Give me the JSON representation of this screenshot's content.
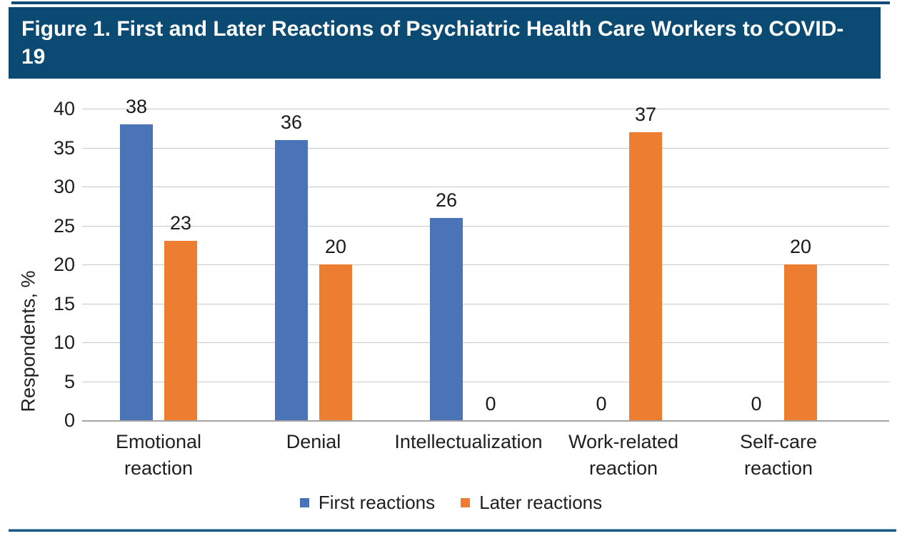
{
  "banner": {
    "title": "Figure 1. First and Later Reactions of Psychiatric Health Care Workers to COVID-19"
  },
  "chart_data": {
    "type": "bar",
    "title": "Figure 1. First and Later Reactions of Psychiatric Health Care Workers to COVID-19",
    "categories": [
      "Emotional reaction",
      "Denial",
      "Intellectualization",
      "Work-related reaction",
      "Self-care reaction"
    ],
    "series": [
      {
        "name": "First reactions",
        "color": "#4a73b8",
        "values": [
          38,
          36,
          26,
          0,
          0
        ]
      },
      {
        "name": "Later reactions",
        "color": "#ed7d31",
        "values": [
          23,
          20,
          0,
          37,
          20
        ]
      }
    ],
    "xlabel": "",
    "ylabel": "Respondents, %",
    "ylim": [
      0,
      40
    ],
    "ytick_step": 5,
    "grid": true,
    "data_labels": true,
    "legend_position": "bottom"
  },
  "colors": {
    "banner_bg": "#0a4a73",
    "banner_text": "#ffffff",
    "rule": "#1b5880",
    "gridline": "#c9c9c9",
    "axis_line": "#a3a3a3",
    "text": "#1f1f1f"
  }
}
